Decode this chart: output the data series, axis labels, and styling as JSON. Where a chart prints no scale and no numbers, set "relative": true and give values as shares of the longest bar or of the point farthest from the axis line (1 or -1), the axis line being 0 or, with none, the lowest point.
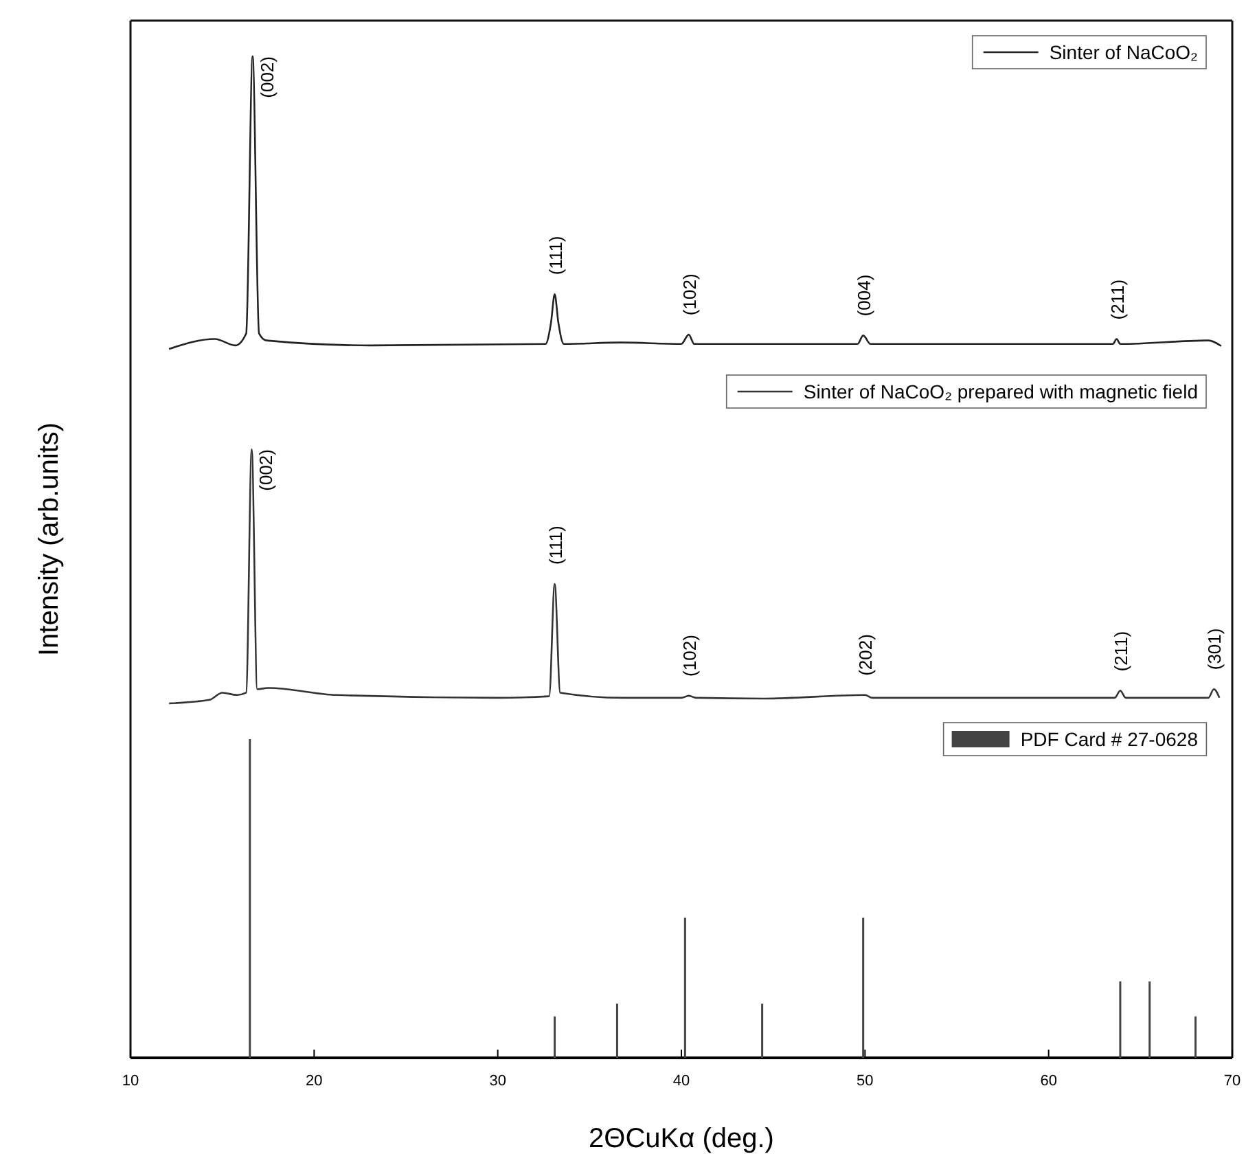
{
  "chart_data": [
    {
      "type": "line",
      "relative": true,
      "xlim": [
        10,
        70
      ],
      "tick_labels": false,
      "legend": "top right",
      "series": [
        {
          "name": "Sinter of NaCoO₂",
          "color": "#222222",
          "x": [
            12.1,
            14.6,
            15.7,
            16.3,
            16.65,
            17.0,
            17.4,
            23.1,
            32.6,
            32.9,
            33.1,
            33.3,
            33.6,
            36.7,
            40.0,
            40.4,
            40.7,
            44.6,
            49.6,
            49.9,
            50.3,
            63.5,
            63.7,
            63.9,
            68.7,
            69.4
          ],
          "values": [
            0,
            0.034,
            0.012,
            0.053,
            1,
            0.053,
            0.029,
            0.012,
            0.017,
            0.09,
            0.187,
            0.09,
            0.017,
            0.022,
            0.017,
            0.049,
            0.017,
            0.017,
            0.017,
            0.046,
            0.017,
            0.017,
            0.034,
            0.017,
            0.029,
            0.01
          ]
        }
      ],
      "annotations": [
        {
          "text": "(002)",
          "x": 16.65,
          "y": 1
        },
        {
          "text": "(111)",
          "x": 33.1,
          "y": 0.187
        },
        {
          "text": "(102)",
          "x": 40.4,
          "y": 0.049
        },
        {
          "text": "(004)",
          "x": 49.9,
          "y": 0.046
        },
        {
          "text": "(211)",
          "x": 63.7,
          "y": 0.034
        }
      ]
    },
    {
      "type": "line",
      "relative": true,
      "xlim": [
        10,
        70
      ],
      "tick_labels": false,
      "legend": "top right",
      "ylabel": "Intensity (arb.units)",
      "series": [
        {
          "name": "Sinter of NaCoO₂ prepared with magnetic field",
          "color": "#333333",
          "x": [
            12.1,
            14.3,
            15.0,
            15.8,
            16.3,
            16.6,
            16.9,
            17.5,
            21.2,
            30.0,
            32.8,
            33.1,
            33.4,
            36.8,
            40.0,
            40.4,
            40.8,
            44.5,
            50.0,
            50.4,
            63.6,
            63.9,
            64.2,
            68.7,
            69.0,
            69.3
          ],
          "values": [
            0,
            0.014,
            0.042,
            0.033,
            0.042,
            1,
            0.056,
            0.061,
            0.033,
            0.022,
            0.028,
            0.47,
            0.042,
            0.022,
            0.022,
            0.03,
            0.022,
            0.019,
            0.033,
            0.022,
            0.022,
            0.05,
            0.022,
            0.022,
            0.056,
            0.022
          ]
        }
      ],
      "annotations": [
        {
          "text": "(002)",
          "x": 16.6,
          "y": 1
        },
        {
          "text": "(111)",
          "x": 33.1,
          "y": 0.47
        },
        {
          "text": "(102)",
          "x": 40.4,
          "y": 0.03
        },
        {
          "text": "(202)",
          "x": 50.0,
          "y": 0.033
        },
        {
          "text": "(211)",
          "x": 63.9,
          "y": 0.05
        },
        {
          "text": "(301)",
          "x": 69.0,
          "y": 0.056
        }
      ]
    },
    {
      "type": "bar",
      "relative": true,
      "xlim": [
        10,
        70
      ],
      "xticks": [
        10,
        20,
        30,
        40,
        50,
        60,
        70
      ],
      "tick_labels": "x",
      "legend": "top right",
      "xlabel": "2ΘCuKα (deg.)",
      "series": [
        {
          "name": "PDF Card # 27-0628",
          "color": "#444444",
          "x": [
            16.5,
            33.1,
            36.5,
            40.2,
            44.4,
            49.9,
            63.9,
            65.5,
            68.0
          ],
          "values": [
            1,
            0.13,
            0.17,
            0.44,
            0.17,
            0.44,
            0.24,
            0.24,
            0.13
          ]
        }
      ]
    }
  ]
}
